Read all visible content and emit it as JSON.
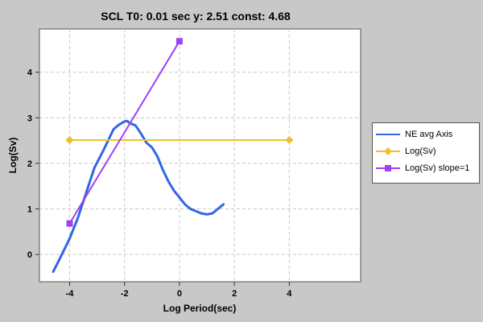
{
  "chart_data": {
    "type": "line",
    "title": "SCL T0: 0.01 sec  y: 2.51 const: 4.68",
    "xlabel": "Log Period(sec)",
    "ylabel": "Log(Sv)",
    "xlim": [
      -5.1,
      6.6
    ],
    "ylim": [
      -0.6,
      4.95
    ],
    "xticks": [
      -4,
      -2,
      0,
      2,
      4
    ],
    "xtick_labels": [
      "-4",
      "-2",
      "0",
      "2",
      "4"
    ],
    "yticks": [
      0,
      1,
      2,
      3,
      4
    ],
    "ytick_labels": [
      "0",
      "1",
      "2",
      "3",
      "4"
    ],
    "grid": true,
    "legend_position": "right",
    "series": [
      {
        "name": "NE avg Axis",
        "color": "#3366e6",
        "marker": "none",
        "x": [
          -4.6,
          -4.3,
          -4.0,
          -3.7,
          -3.4,
          -3.1,
          -2.8,
          -2.6,
          -2.4,
          -2.2,
          -2.0,
          -1.9,
          -1.8,
          -1.6,
          -1.4,
          -1.2,
          -1.0,
          -0.8,
          -0.6,
          -0.4,
          -0.2,
          0.0,
          0.2,
          0.4,
          0.6,
          0.8,
          1.0,
          1.2,
          1.4,
          1.6
        ],
        "y": [
          -0.38,
          -0.02,
          0.35,
          0.8,
          1.35,
          1.9,
          2.25,
          2.5,
          2.75,
          2.85,
          2.92,
          2.93,
          2.88,
          2.83,
          2.65,
          2.45,
          2.35,
          2.15,
          1.85,
          1.6,
          1.4,
          1.25,
          1.1,
          1.0,
          0.95,
          0.9,
          0.88,
          0.9,
          1.0,
          1.1
        ]
      },
      {
        "name": "Log(Sv)",
        "color": "#f5bd2e",
        "marker": "diamond",
        "x": [
          -4,
          4
        ],
        "y": [
          2.51,
          2.51
        ]
      },
      {
        "name": "Log(Sv) slope=1",
        "color": "#a040f0",
        "marker": "square",
        "x": [
          -4,
          0
        ],
        "y": [
          0.68,
          4.68
        ]
      }
    ]
  }
}
